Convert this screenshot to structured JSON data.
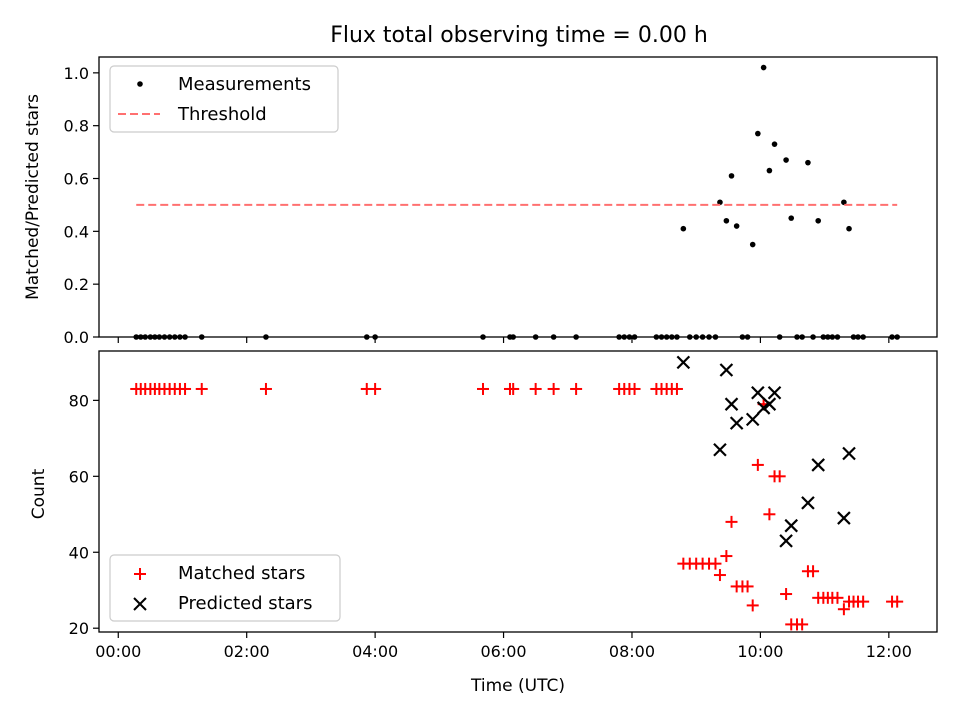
{
  "chart_data": [
    {
      "type": "scatter",
      "title": "Flux total observing time = 0.00 h",
      "xlabel": "",
      "ylabel": "Matched/Predicted stars",
      "xlim": [
        -0.3,
        12.75
      ],
      "ylim": [
        0.0,
        1.06
      ],
      "x_tick_values": [
        0,
        2,
        4,
        6,
        8,
        10,
        12
      ],
      "x_tick_labels": [
        "",
        "",
        "",
        "",
        "",
        "",
        ""
      ],
      "y_ticks": [
        0.0,
        0.2,
        0.4,
        0.6,
        0.8,
        1.0
      ],
      "y_tick_labels": [
        "0.0",
        "0.2",
        "0.4",
        "0.6",
        "0.8",
        "1.0"
      ],
      "legend_position": "top-left",
      "series": [
        {
          "name": "Measurements",
          "color": "#000000",
          "marker": "dot",
          "points": [
            [
              0.28,
              0
            ],
            [
              0.35,
              0
            ],
            [
              0.42,
              0
            ],
            [
              0.5,
              0
            ],
            [
              0.57,
              0
            ],
            [
              0.64,
              0
            ],
            [
              0.72,
              0
            ],
            [
              0.8,
              0
            ],
            [
              0.88,
              0
            ],
            [
              0.96,
              0
            ],
            [
              1.04,
              0
            ],
            [
              1.3,
              0
            ],
            [
              2.3,
              0
            ],
            [
              3.87,
              0
            ],
            [
              4.0,
              0
            ],
            [
              5.68,
              0
            ],
            [
              6.1,
              0
            ],
            [
              6.15,
              0
            ],
            [
              6.5,
              0
            ],
            [
              6.78,
              0
            ],
            [
              7.13,
              0
            ],
            [
              7.8,
              0
            ],
            [
              7.88,
              0
            ],
            [
              7.96,
              0
            ],
            [
              8.04,
              0
            ],
            [
              8.38,
              0
            ],
            [
              8.46,
              0
            ],
            [
              8.54,
              0
            ],
            [
              8.62,
              0
            ],
            [
              8.7,
              0
            ],
            [
              8.8,
              0.41
            ],
            [
              8.9,
              0
            ],
            [
              9.0,
              0
            ],
            [
              9.1,
              0
            ],
            [
              9.2,
              0
            ],
            [
              9.3,
              0
            ],
            [
              9.37,
              0.51
            ],
            [
              9.47,
              0.44
            ],
            [
              9.55,
              0.61
            ],
            [
              9.63,
              0.42
            ],
            [
              9.72,
              0
            ],
            [
              9.8,
              0
            ],
            [
              9.88,
              0.35
            ],
            [
              9.96,
              0.77
            ],
            [
              10.05,
              1.02
            ],
            [
              10.14,
              0.63
            ],
            [
              10.22,
              0.73
            ],
            [
              10.3,
              0
            ],
            [
              10.4,
              0.67
            ],
            [
              10.48,
              0.45
            ],
            [
              10.57,
              0
            ],
            [
              10.65,
              0
            ],
            [
              10.74,
              0.66
            ],
            [
              10.82,
              0
            ],
            [
              10.9,
              0.44
            ],
            [
              10.98,
              0
            ],
            [
              11.05,
              0
            ],
            [
              11.12,
              0
            ],
            [
              11.2,
              0
            ],
            [
              11.3,
              0.51
            ],
            [
              11.38,
              0.41
            ],
            [
              11.45,
              0
            ],
            [
              11.52,
              0
            ],
            [
              11.6,
              0
            ],
            [
              12.05,
              0
            ],
            [
              12.13,
              0
            ]
          ]
        },
        {
          "name": "Threshold",
          "color": "#ff7070",
          "style": "dashed",
          "points": [
            [
              0.28,
              0.5
            ],
            [
              12.13,
              0.5
            ]
          ]
        }
      ]
    },
    {
      "type": "scatter",
      "title": "",
      "xlabel": "Time (UTC)",
      "ylabel": "Count",
      "xlim": [
        -0.3,
        12.75
      ],
      "ylim": [
        19,
        93
      ],
      "x_tick_values": [
        0,
        2,
        4,
        6,
        8,
        10,
        12
      ],
      "x_tick_labels": [
        "00:00",
        "02:00",
        "04:00",
        "06:00",
        "08:00",
        "10:00",
        "12:00"
      ],
      "y_ticks": [
        20,
        40,
        60,
        80
      ],
      "y_tick_labels": [
        "20",
        "40",
        "60",
        "80"
      ],
      "legend_position": "bottom-left",
      "series": [
        {
          "name": "Matched stars",
          "color": "#ff0000",
          "marker": "plus",
          "points": [
            [
              0.28,
              83
            ],
            [
              0.35,
              83
            ],
            [
              0.42,
              83
            ],
            [
              0.5,
              83
            ],
            [
              0.57,
              83
            ],
            [
              0.64,
              83
            ],
            [
              0.72,
              83
            ],
            [
              0.8,
              83
            ],
            [
              0.88,
              83
            ],
            [
              0.96,
              83
            ],
            [
              1.04,
              83
            ],
            [
              1.3,
              83
            ],
            [
              2.3,
              83
            ],
            [
              3.87,
              83
            ],
            [
              4.0,
              83
            ],
            [
              5.68,
              83
            ],
            [
              6.1,
              83
            ],
            [
              6.15,
              83
            ],
            [
              6.5,
              83
            ],
            [
              6.78,
              83
            ],
            [
              7.13,
              83
            ],
            [
              7.8,
              83
            ],
            [
              7.88,
              83
            ],
            [
              7.96,
              83
            ],
            [
              8.04,
              83
            ],
            [
              8.38,
              83
            ],
            [
              8.46,
              83
            ],
            [
              8.54,
              83
            ],
            [
              8.62,
              83
            ],
            [
              8.7,
              83
            ],
            [
              8.8,
              37
            ],
            [
              8.9,
              37
            ],
            [
              9.0,
              37
            ],
            [
              9.1,
              37
            ],
            [
              9.2,
              37
            ],
            [
              9.3,
              37
            ],
            [
              9.37,
              34
            ],
            [
              9.47,
              39
            ],
            [
              9.55,
              48
            ],
            [
              9.63,
              31
            ],
            [
              9.72,
              31
            ],
            [
              9.8,
              31
            ],
            [
              9.88,
              26
            ],
            [
              9.96,
              63
            ],
            [
              10.05,
              79
            ],
            [
              10.14,
              50
            ],
            [
              10.22,
              60
            ],
            [
              10.3,
              60
            ],
            [
              10.4,
              29
            ],
            [
              10.48,
              21
            ],
            [
              10.57,
              21
            ],
            [
              10.65,
              21
            ],
            [
              10.74,
              35
            ],
            [
              10.82,
              35
            ],
            [
              10.9,
              28
            ],
            [
              10.98,
              28
            ],
            [
              11.05,
              28
            ],
            [
              11.12,
              28
            ],
            [
              11.2,
              28
            ],
            [
              11.3,
              25
            ],
            [
              11.38,
              27
            ],
            [
              11.45,
              27
            ],
            [
              11.52,
              27
            ],
            [
              11.6,
              27
            ],
            [
              12.05,
              27
            ],
            [
              12.13,
              27
            ]
          ]
        },
        {
          "name": "Predicted stars",
          "color": "#000000",
          "marker": "x",
          "points": [
            [
              8.8,
              90
            ],
            [
              9.37,
              67
            ],
            [
              9.47,
              88
            ],
            [
              9.55,
              79
            ],
            [
              9.63,
              74
            ],
            [
              9.88,
              75
            ],
            [
              9.96,
              82
            ],
            [
              10.05,
              78
            ],
            [
              10.14,
              79
            ],
            [
              10.22,
              82
            ],
            [
              10.4,
              43
            ],
            [
              10.48,
              47
            ],
            [
              10.74,
              53
            ],
            [
              10.9,
              63
            ],
            [
              11.3,
              49
            ],
            [
              11.38,
              66
            ]
          ]
        }
      ]
    }
  ]
}
